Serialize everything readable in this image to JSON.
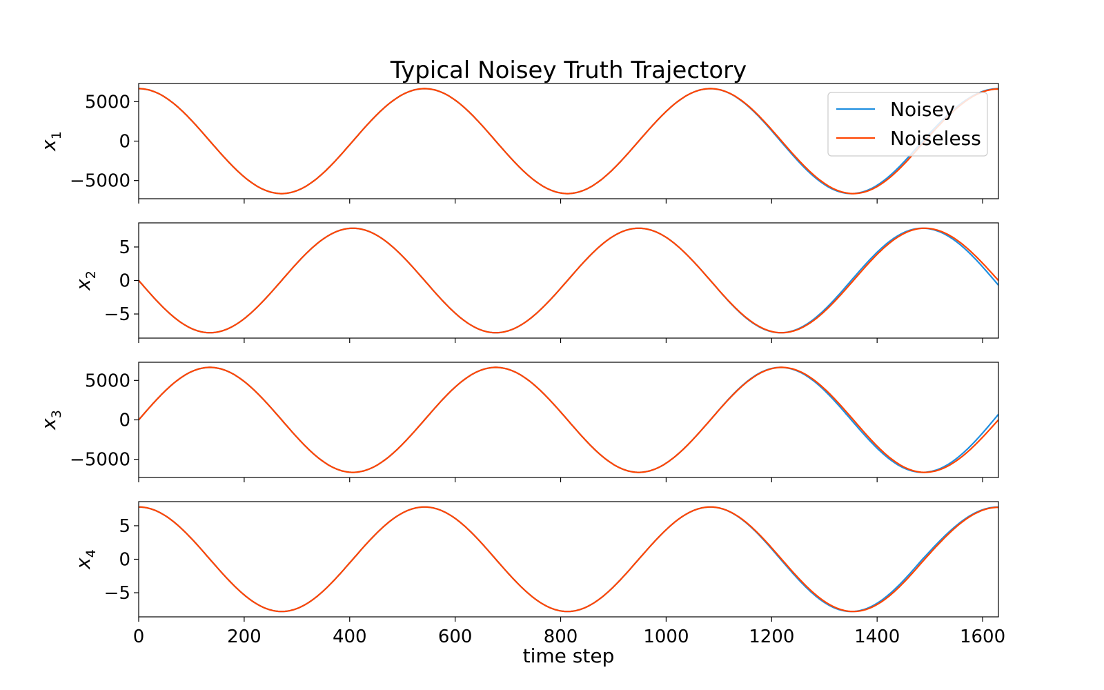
{
  "chart_data": {
    "type": "line",
    "title": "Typical Noisey Truth Trajectory",
    "xlabel": "time step",
    "xlim": [
      0,
      1630
    ],
    "xticks": [
      0,
      200,
      400,
      600,
      800,
      1000,
      1200,
      1400,
      1600
    ],
    "legend": {
      "placement": "top-right",
      "entries": [
        "Noisey",
        "Noiseless"
      ]
    },
    "colors": {
      "Noisey": "#1f8fe0",
      "Noiseless": "#ff4500"
    },
    "grid": false,
    "panels": [
      {
        "ylabel": "x",
        "ylabel_sub": "1",
        "ylim": [
          -7300,
          7300
        ],
        "yticks": [
          5000,
          0,
          -5000
        ],
        "ytick_labels": [
          "5000",
          "0",
          "−5000"
        ],
        "legend": true,
        "series": [
          {
            "name": "Noisey",
            "x": [
              0,
              135,
              271,
              406,
              542,
              677,
              813,
              948,
              1084,
              1217,
              1351,
              1486,
              1630
            ],
            "y": [
              6650,
              0,
              -6650,
              0,
              6650,
              0,
              -6650,
              0,
              6650,
              0,
              -6650,
              0,
              6650
            ]
          },
          {
            "name": "Noiseless",
            "x": [
              0,
              135,
              271,
              406,
              542,
              677,
              813,
              948,
              1084,
              1219,
              1355,
              1490,
              1630
            ],
            "y": [
              6650,
              0,
              -6650,
              0,
              6650,
              0,
              -6650,
              0,
              6650,
              0,
              -6650,
              0,
              6600
            ]
          }
        ]
      },
      {
        "ylabel": "x",
        "ylabel_sub": "2",
        "ylim": [
          -8.6,
          8.6
        ],
        "yticks": [
          5,
          0,
          -5
        ],
        "ytick_labels": [
          "5",
          "0",
          "−5"
        ],
        "legend": false,
        "series": [
          {
            "name": "Noisey",
            "x": [
              0,
              135,
              271,
              406,
              542,
              677,
              813,
              948,
              1084,
              1217,
              1351,
              1486,
              1630
            ],
            "y": [
              0,
              -7.8,
              0,
              7.8,
              0,
              -7.8,
              0,
              7.8,
              0,
              -7.8,
              0,
              7.8,
              -0.7
            ]
          },
          {
            "name": "Noiseless",
            "x": [
              0,
              135,
              271,
              406,
              542,
              677,
              813,
              948,
              1084,
              1219,
              1355,
              1490,
              1630
            ],
            "y": [
              0,
              -7.8,
              0,
              7.8,
              0,
              -7.8,
              0,
              7.8,
              0,
              -7.8,
              0,
              7.8,
              0
            ]
          }
        ]
      },
      {
        "ylabel": "x",
        "ylabel_sub": "3",
        "ylim": [
          -7300,
          7300
        ],
        "yticks": [
          5000,
          0,
          -5000
        ],
        "ytick_labels": [
          "5000",
          "0",
          "−5000"
        ],
        "legend": false,
        "series": [
          {
            "name": "Noisey",
            "x": [
              0,
              135,
              271,
              406,
              542,
              677,
              813,
              948,
              1084,
              1217,
              1351,
              1486,
              1630
            ],
            "y": [
              0,
              6650,
              0,
              -6650,
              0,
              6650,
              0,
              -6650,
              0,
              6650,
              0,
              -6650,
              700
            ]
          },
          {
            "name": "Noiseless",
            "x": [
              0,
              135,
              271,
              406,
              542,
              677,
              813,
              948,
              1084,
              1219,
              1355,
              1490,
              1630
            ],
            "y": [
              0,
              6650,
              0,
              -6650,
              0,
              6650,
              0,
              -6650,
              0,
              6650,
              0,
              -6650,
              0
            ]
          }
        ]
      },
      {
        "ylabel": "x",
        "ylabel_sub": "4",
        "ylim": [
          -8.6,
          8.6
        ],
        "yticks": [
          5,
          0,
          -5
        ],
        "ytick_labels": [
          "5",
          "0",
          "−5"
        ],
        "legend": false,
        "series": [
          {
            "name": "Noisey",
            "x": [
              0,
              135,
              271,
              406,
              542,
              677,
              813,
              948,
              1084,
              1217,
              1351,
              1486,
              1630
            ],
            "y": [
              7.8,
              0,
              -7.8,
              0,
              7.8,
              0,
              -7.8,
              0,
              7.8,
              0,
              -7.8,
              0,
              7.8
            ]
          },
          {
            "name": "Noiseless",
            "x": [
              0,
              135,
              271,
              406,
              542,
              677,
              813,
              948,
              1084,
              1219,
              1355,
              1490,
              1630
            ],
            "y": [
              7.8,
              0,
              -7.8,
              0,
              7.8,
              0,
              -7.8,
              0,
              7.8,
              0,
              -7.8,
              0,
              7.75
            ]
          }
        ]
      }
    ]
  }
}
